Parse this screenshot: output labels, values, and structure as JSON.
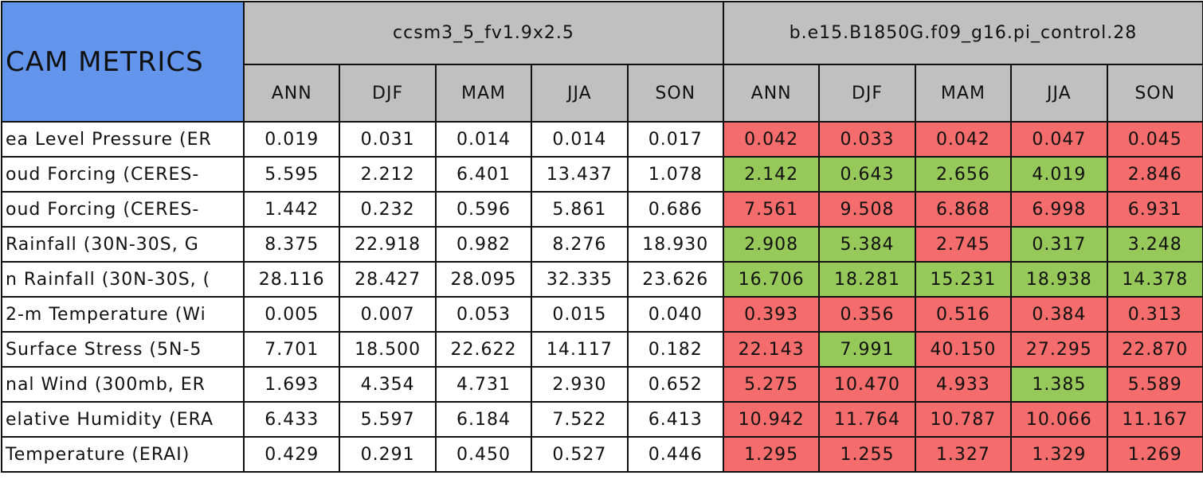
{
  "header": {
    "title": "CAM METRICS",
    "groups": [
      "ccsm3_5_fv1.9x2.5",
      "b.e15.B1850G.f09_g16.pi_control.28"
    ],
    "seasons": [
      "ANN",
      "DJF",
      "MAM",
      "JJA",
      "SON",
      "ANN",
      "DJF",
      "MAM",
      "JJA",
      "SON"
    ],
    "group_color": "#c0c0c0",
    "title_color": "#6495ed"
  },
  "table": {
    "rows": [
      {
        "label": "ea Level Pressure (ER",
        "values": [
          "0.019",
          "0.031",
          "0.014",
          "0.014",
          "0.017",
          "0.042",
          "0.033",
          "0.042",
          "0.047",
          "0.045"
        ],
        "colors": [
          "#ffffff",
          "#ffffff",
          "#ffffff",
          "#ffffff",
          "#ffffff",
          "#f46c6c",
          "#f46c6c",
          "#f46c6c",
          "#f46c6c",
          "#f46c6c"
        ]
      },
      {
        "label": "oud Forcing (CERES-",
        "values": [
          "5.595",
          "2.212",
          "6.401",
          "13.437",
          "1.078",
          "2.142",
          "0.643",
          "2.656",
          "4.019",
          "2.846"
        ],
        "colors": [
          "#ffffff",
          "#ffffff",
          "#ffffff",
          "#ffffff",
          "#ffffff",
          "#97c95a",
          "#97c95a",
          "#97c95a",
          "#97c95a",
          "#f46c6c"
        ]
      },
      {
        "label": "oud Forcing (CERES-",
        "values": [
          "1.442",
          "0.232",
          "0.596",
          "5.861",
          "0.686",
          "7.561",
          "9.508",
          "6.868",
          "6.998",
          "6.931"
        ],
        "colors": [
          "#ffffff",
          "#ffffff",
          "#ffffff",
          "#ffffff",
          "#ffffff",
          "#f46c6c",
          "#f46c6c",
          "#f46c6c",
          "#f46c6c",
          "#f46c6c"
        ]
      },
      {
        "label": "Rainfall (30N-30S, G",
        "values": [
          "8.375",
          "22.918",
          "0.982",
          "8.276",
          "18.930",
          "2.908",
          "5.384",
          "2.745",
          "0.317",
          "3.248"
        ],
        "colors": [
          "#ffffff",
          "#ffffff",
          "#ffffff",
          "#ffffff",
          "#ffffff",
          "#97c95a",
          "#97c95a",
          "#f46c6c",
          "#97c95a",
          "#97c95a"
        ]
      },
      {
        "label": "n Rainfall (30N-30S, (",
        "values": [
          "28.116",
          "28.427",
          "28.095",
          "32.335",
          "23.626",
          "16.706",
          "18.281",
          "15.231",
          "18.938",
          "14.378"
        ],
        "colors": [
          "#ffffff",
          "#ffffff",
          "#ffffff",
          "#ffffff",
          "#ffffff",
          "#97c95a",
          "#97c95a",
          "#97c95a",
          "#97c95a",
          "#97c95a"
        ]
      },
      {
        "label": "2-m Temperature (Wi",
        "values": [
          "0.005",
          "0.007",
          "0.053",
          "0.015",
          "0.040",
          "0.393",
          "0.356",
          "0.516",
          "0.384",
          "0.313"
        ],
        "colors": [
          "#ffffff",
          "#ffffff",
          "#ffffff",
          "#ffffff",
          "#ffffff",
          "#f46c6c",
          "#f46c6c",
          "#f46c6c",
          "#f46c6c",
          "#f46c6c"
        ]
      },
      {
        "label": "Surface Stress (5N-5",
        "values": [
          "7.701",
          "18.500",
          "22.622",
          "14.117",
          "0.182",
          "22.143",
          "7.991",
          "40.150",
          "27.295",
          "22.870"
        ],
        "colors": [
          "#ffffff",
          "#ffffff",
          "#ffffff",
          "#ffffff",
          "#ffffff",
          "#f46c6c",
          "#97c95a",
          "#f46c6c",
          "#f46c6c",
          "#f46c6c"
        ]
      },
      {
        "label": "nal Wind (300mb, ER",
        "values": [
          "1.693",
          "4.354",
          "4.731",
          "2.930",
          "0.652",
          "5.275",
          "10.470",
          "4.933",
          "1.385",
          "5.589"
        ],
        "colors": [
          "#ffffff",
          "#ffffff",
          "#ffffff",
          "#ffffff",
          "#ffffff",
          "#f46c6c",
          "#f46c6c",
          "#f46c6c",
          "#97c95a",
          "#f46c6c"
        ]
      },
      {
        "label": "elative Humidity (ERA",
        "values": [
          "6.433",
          "5.597",
          "6.184",
          "7.522",
          "6.413",
          "10.942",
          "11.764",
          "10.787",
          "10.066",
          "11.167"
        ],
        "colors": [
          "#ffffff",
          "#ffffff",
          "#ffffff",
          "#ffffff",
          "#ffffff",
          "#f46c6c",
          "#f46c6c",
          "#f46c6c",
          "#f46c6c",
          "#f46c6c"
        ]
      },
      {
        "label": "Temperature (ERAI)",
        "values": [
          "0.429",
          "0.291",
          "0.450",
          "0.527",
          "0.446",
          "1.295",
          "1.255",
          "1.327",
          "1.329",
          "1.269"
        ],
        "colors": [
          "#ffffff",
          "#ffffff",
          "#ffffff",
          "#ffffff",
          "#ffffff",
          "#f46c6c",
          "#f46c6c",
          "#f46c6c",
          "#f46c6c",
          "#f46c6c"
        ]
      }
    ]
  }
}
